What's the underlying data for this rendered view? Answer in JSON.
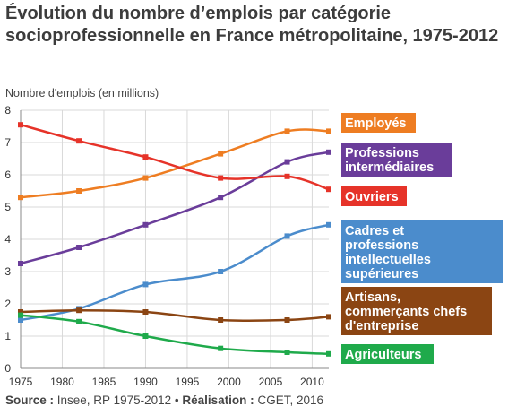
{
  "page": {
    "title": "Évolution du nombre d’emplois par catégorie socioprofessionnelle en France métropolitaine, 1975-2012",
    "source_label": "Source :",
    "source_value": "Insee, RP 1975-2012",
    "separator": "•",
    "realisation_label": "Réalisation :",
    "realisation_value": "CGET, 2016"
  },
  "chart_data": {
    "type": "line",
    "ylabel": "Nombre d'emplois (en millions)",
    "xlabel": "",
    "xlim": [
      1975,
      2012
    ],
    "ylim": [
      0,
      8
    ],
    "xticks": [
      1975,
      1980,
      1985,
      1990,
      1995,
      2000,
      2005,
      2010
    ],
    "yticks": [
      0,
      1,
      2,
      3,
      4,
      5,
      6,
      7,
      8
    ],
    "grid": true,
    "legend": "right, labels next to line ends",
    "x": [
      1975,
      1982,
      1990,
      1999,
      2007,
      2012
    ],
    "series": [
      {
        "name": "Employés",
        "color": "#ee7d22",
        "values": [
          5.3,
          5.5,
          5.9,
          6.65,
          7.35,
          7.35
        ]
      },
      {
        "name": "Professions intermédiaires",
        "color": "#6a3d9a",
        "values": [
          3.25,
          3.75,
          4.45,
          5.3,
          6.4,
          6.7
        ]
      },
      {
        "name": "Ouvriers",
        "color": "#e63329",
        "values": [
          7.55,
          7.05,
          6.55,
          5.9,
          5.95,
          5.55
        ]
      },
      {
        "name": "Cadres et professions intellectuelles supérieures",
        "color": "#4b8ccc",
        "values": [
          1.5,
          1.85,
          2.6,
          3.0,
          4.1,
          4.45
        ]
      },
      {
        "name": "Artisans, commerçants chefs d'entreprise",
        "color": "#8b4513",
        "values": [
          1.75,
          1.8,
          1.75,
          1.5,
          1.5,
          1.6
        ]
      },
      {
        "name": "Agriculteurs",
        "color": "#1faa4b",
        "values": [
          1.65,
          1.45,
          1.0,
          0.62,
          0.5,
          0.45
        ]
      }
    ]
  }
}
